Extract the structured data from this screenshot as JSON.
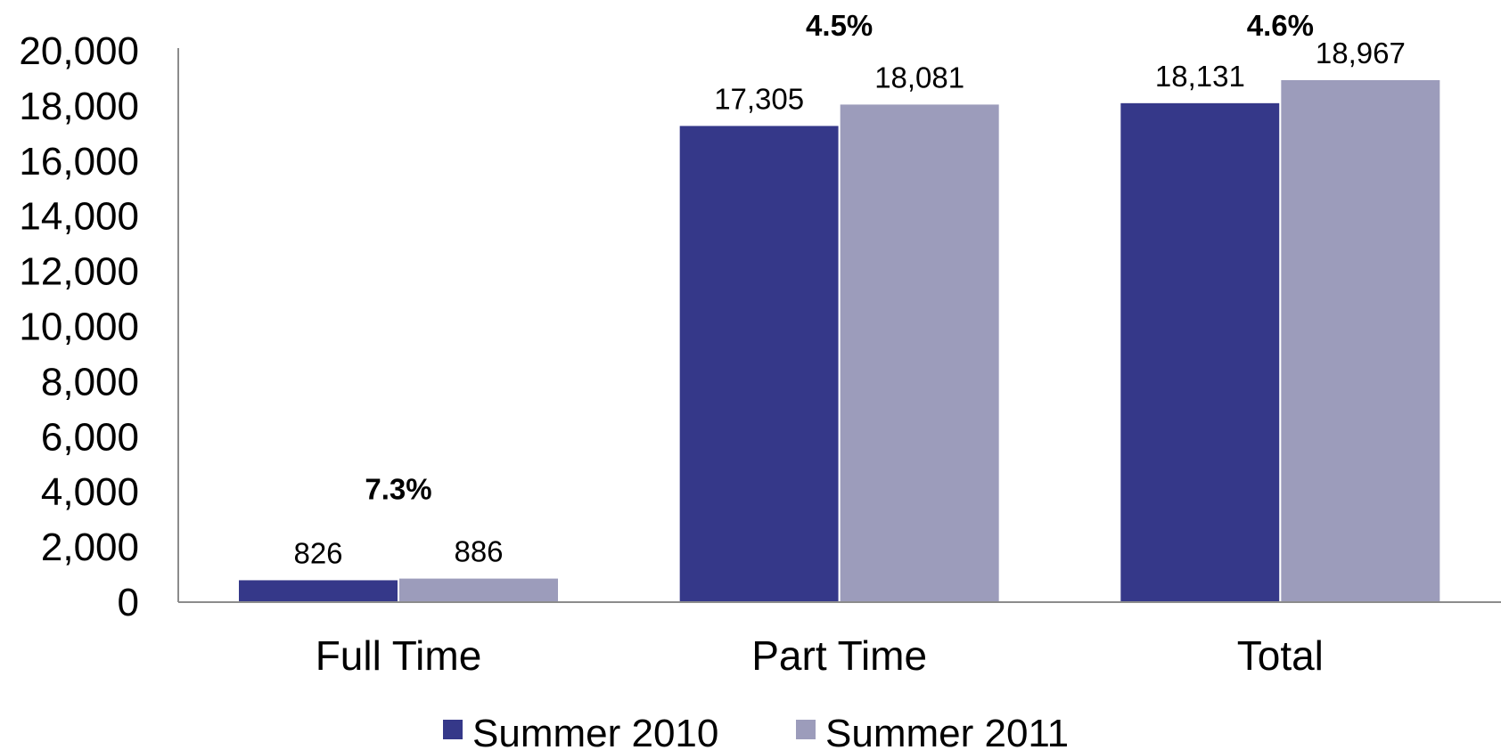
{
  "chart_data": {
    "type": "bar",
    "categories": [
      "Full Time",
      "Part Time",
      "Total"
    ],
    "series": [
      {
        "name": "Summer 2010",
        "values": [
          826,
          17305,
          18131
        ],
        "color": "#353889"
      },
      {
        "name": "Summer 2011",
        "values": [
          886,
          18081,
          18967
        ],
        "color": "#9c9cbb"
      }
    ],
    "value_labels": [
      [
        "826",
        "17,305",
        "18,131"
      ],
      [
        "886",
        "18,081",
        "18,967"
      ]
    ],
    "change_labels": [
      "7.3%",
      "4.5%",
      "4.6%"
    ],
    "title": "",
    "xlabel": "",
    "ylabel": "",
    "ylim": [
      0,
      20000
    ],
    "yticks": [
      0,
      2000,
      4000,
      6000,
      8000,
      10000,
      12000,
      14000,
      16000,
      18000,
      20000
    ],
    "ytick_labels": [
      "0",
      "2,000",
      "4,000",
      "6,000",
      "8,000",
      "10,000",
      "12,000",
      "14,000",
      "16,000",
      "18,000",
      "20,000"
    ],
    "grid": false,
    "legend_position": "bottom-center"
  }
}
